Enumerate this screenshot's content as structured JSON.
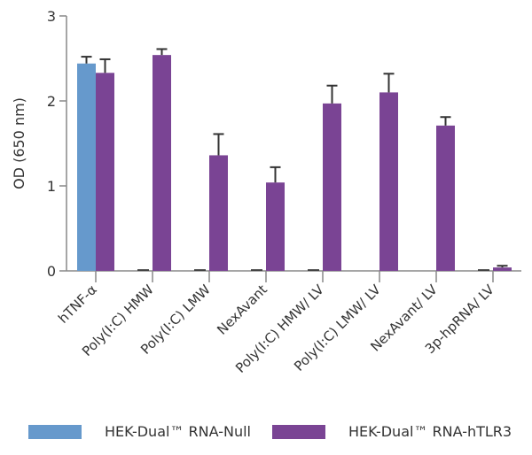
{
  "chart_data": {
    "type": "bar",
    "title": "",
    "xlabel": "",
    "ylabel": "OD (650 nm)",
    "ylim": [
      0,
      3
    ],
    "yticks": [
      "0",
      "1",
      "2",
      "3"
    ],
    "grid": false,
    "legend_position": "bottom",
    "categories": [
      "hTNF-α",
      "Poly(I:C) HMW",
      "Poly(I:C) LMW",
      "NexAvant",
      "Poly(I:C) HMW/ LV",
      "Poly(I:C) LMW/ LV",
      "NexAvant/ LV",
      "3p-hpRNA/ LV"
    ],
    "series": [
      {
        "name": "HEK-Dual™ RNA-Null",
        "color": "#6699cc",
        "values": [
          2.44,
          0.01,
          0.005,
          0.01,
          0.005,
          0,
          0,
          0.01
        ],
        "error_upper": [
          2.52,
          0.01,
          0.005,
          0.01,
          0.005,
          0,
          0,
          0.01
        ]
      },
      {
        "name": "HEK-Dual™ RNA-hTLR3",
        "color": "#7a4494",
        "values": [
          2.33,
          2.54,
          1.36,
          1.04,
          1.97,
          2.1,
          1.71,
          0.04
        ],
        "error_upper": [
          2.49,
          2.61,
          1.61,
          1.22,
          2.18,
          2.32,
          1.81,
          0.06
        ]
      }
    ]
  }
}
